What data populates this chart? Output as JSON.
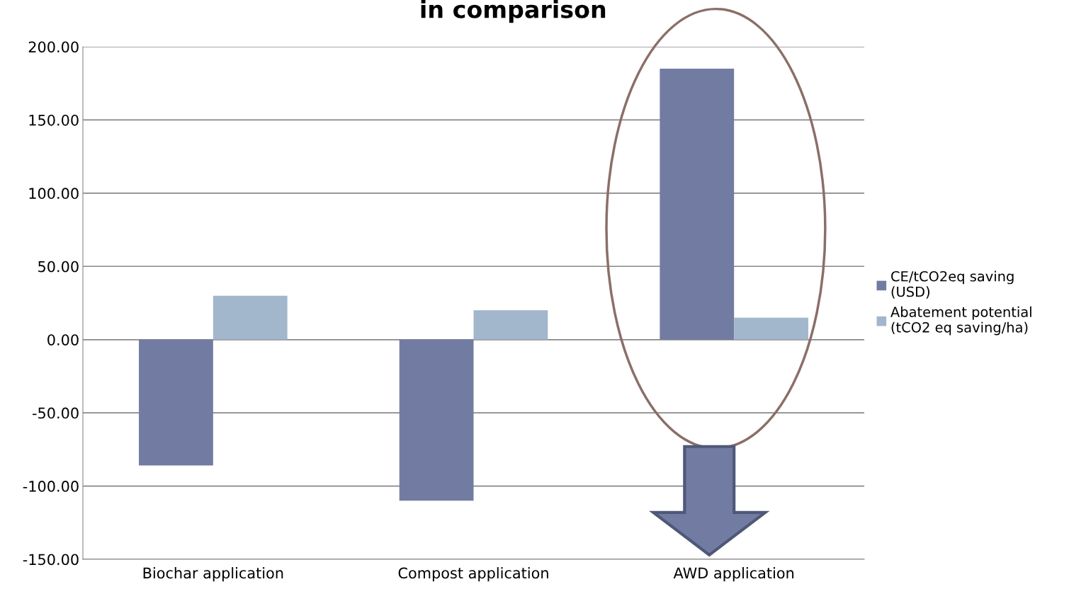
{
  "chart_data": {
    "type": "bar",
    "title": "in comparison",
    "categories": [
      "Biochar application",
      "Compost application",
      "AWD application"
    ],
    "series": [
      {
        "name": "CE/tCO2eq saving (USD)",
        "color": "#727ca2",
        "values": [
          -86,
          -110,
          185
        ]
      },
      {
        "name": "Abatement potential (tCO2 eq saving/ha)",
        "color": "#a2b6cc",
        "values": [
          30,
          20,
          15
        ]
      }
    ],
    "ylim": [
      -150,
      200
    ],
    "yticks": [
      {
        "value": -150,
        "label": "-150.00"
      },
      {
        "value": -100,
        "label": "-100.00"
      },
      {
        "value": -50,
        "label": "-50.00"
      },
      {
        "value": 0,
        "label": "0.00"
      },
      {
        "value": 50,
        "label": "50.00"
      },
      {
        "value": 100,
        "label": "100.00"
      },
      {
        "value": 150,
        "label": "150.00"
      },
      {
        "value": 200,
        "label": "200.00"
      }
    ],
    "grid": "y",
    "legend": "right"
  }
}
